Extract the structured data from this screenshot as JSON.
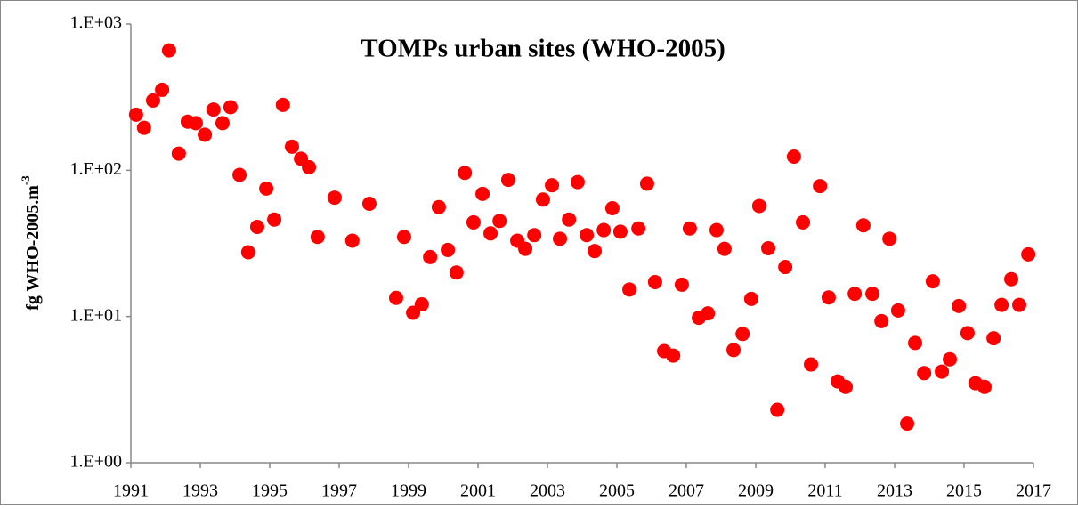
{
  "chart_data": {
    "type": "scatter",
    "title": "TOMPs urban sites (WHO-2005)",
    "ylabel": "fg WHO-2005.m",
    "ylabel_superscript": "-3",
    "log_y": true,
    "grid": false,
    "series": [
      {
        "color": "#ff0000",
        "x": [
          1991.15,
          1991.38,
          1991.64,
          1991.9,
          1992.1,
          1992.38,
          1992.64,
          1992.87,
          1993.13,
          1993.38,
          1993.64,
          1993.87,
          1994.13,
          1994.38,
          1994.64,
          1994.9,
          1995.13,
          1995.38,
          1995.64,
          1995.9,
          1996.13,
          1996.38,
          1996.87,
          1997.38,
          1997.87,
          1998.64,
          1998.87,
          1999.13,
          1999.38,
          1999.62,
          1999.87,
          2000.13,
          2000.38,
          2000.62,
          2000.87,
          2001.13,
          2001.36,
          2001.62,
          2001.87,
          2002.13,
          2002.36,
          2002.62,
          2002.87,
          2003.13,
          2003.36,
          2003.62,
          2003.87,
          2004.13,
          2004.36,
          2004.62,
          2004.87,
          2005.1,
          2005.36,
          2005.62,
          2005.87,
          2006.1,
          2006.36,
          2006.62,
          2006.87,
          2007.1,
          2007.36,
          2007.62,
          2007.87,
          2008.1,
          2008.36,
          2008.62,
          2008.87,
          2009.1,
          2009.36,
          2009.62,
          2009.85,
          2010.1,
          2010.36,
          2010.59,
          2010.85,
          2011.1,
          2011.36,
          2011.59,
          2011.85,
          2012.1,
          2012.36,
          2012.62,
          2012.85,
          2013.1,
          2013.36,
          2013.59,
          2013.85,
          2014.1,
          2014.36,
          2014.59,
          2014.85,
          2015.1,
          2015.33,
          2015.59,
          2015.85,
          2016.08,
          2016.36,
          2016.59,
          2016.85
        ],
        "values": [
          240,
          195,
          300,
          355,
          660,
          130,
          215,
          210,
          175,
          260,
          210,
          270,
          93,
          27.5,
          41,
          75,
          46,
          280,
          145,
          120,
          105,
          35,
          65,
          33,
          59,
          13.4,
          35,
          10.6,
          12.1,
          25.5,
          56,
          28.5,
          20,
          96,
          44,
          69,
          37,
          45,
          86,
          33,
          29,
          36,
          63,
          79,
          34,
          46,
          83,
          36,
          28,
          39,
          55,
          38,
          15.3,
          40,
          81,
          17.2,
          5.8,
          5.4,
          16.5,
          40,
          9.8,
          10.5,
          39,
          29,
          5.9,
          7.6,
          13.2,
          57,
          29.3,
          2.3,
          21.8,
          124,
          44,
          4.7,
          78,
          13.5,
          3.6,
          3.3,
          14.3,
          42,
          14.3,
          9.3,
          34,
          11,
          1.85,
          6.6,
          4.1,
          17.4,
          4.2,
          5.1,
          11.8,
          7.7,
          3.5,
          3.3,
          7.1,
          12,
          18,
          12,
          26.6
        ]
      }
    ],
    "xlim": [
      1991,
      2017
    ],
    "xticks": [
      1991,
      1993,
      1995,
      1997,
      1999,
      2001,
      2003,
      2005,
      2007,
      2009,
      2011,
      2013,
      2015,
      2017
    ],
    "ylim": [
      1,
      1000
    ],
    "yticks": [
      {
        "value": 1,
        "label": "1.E+00"
      },
      {
        "value": 10,
        "label": "1.E+01"
      },
      {
        "value": 100,
        "label": "1.E+02"
      },
      {
        "value": 1000,
        "label": "1.E+03"
      }
    ]
  }
}
